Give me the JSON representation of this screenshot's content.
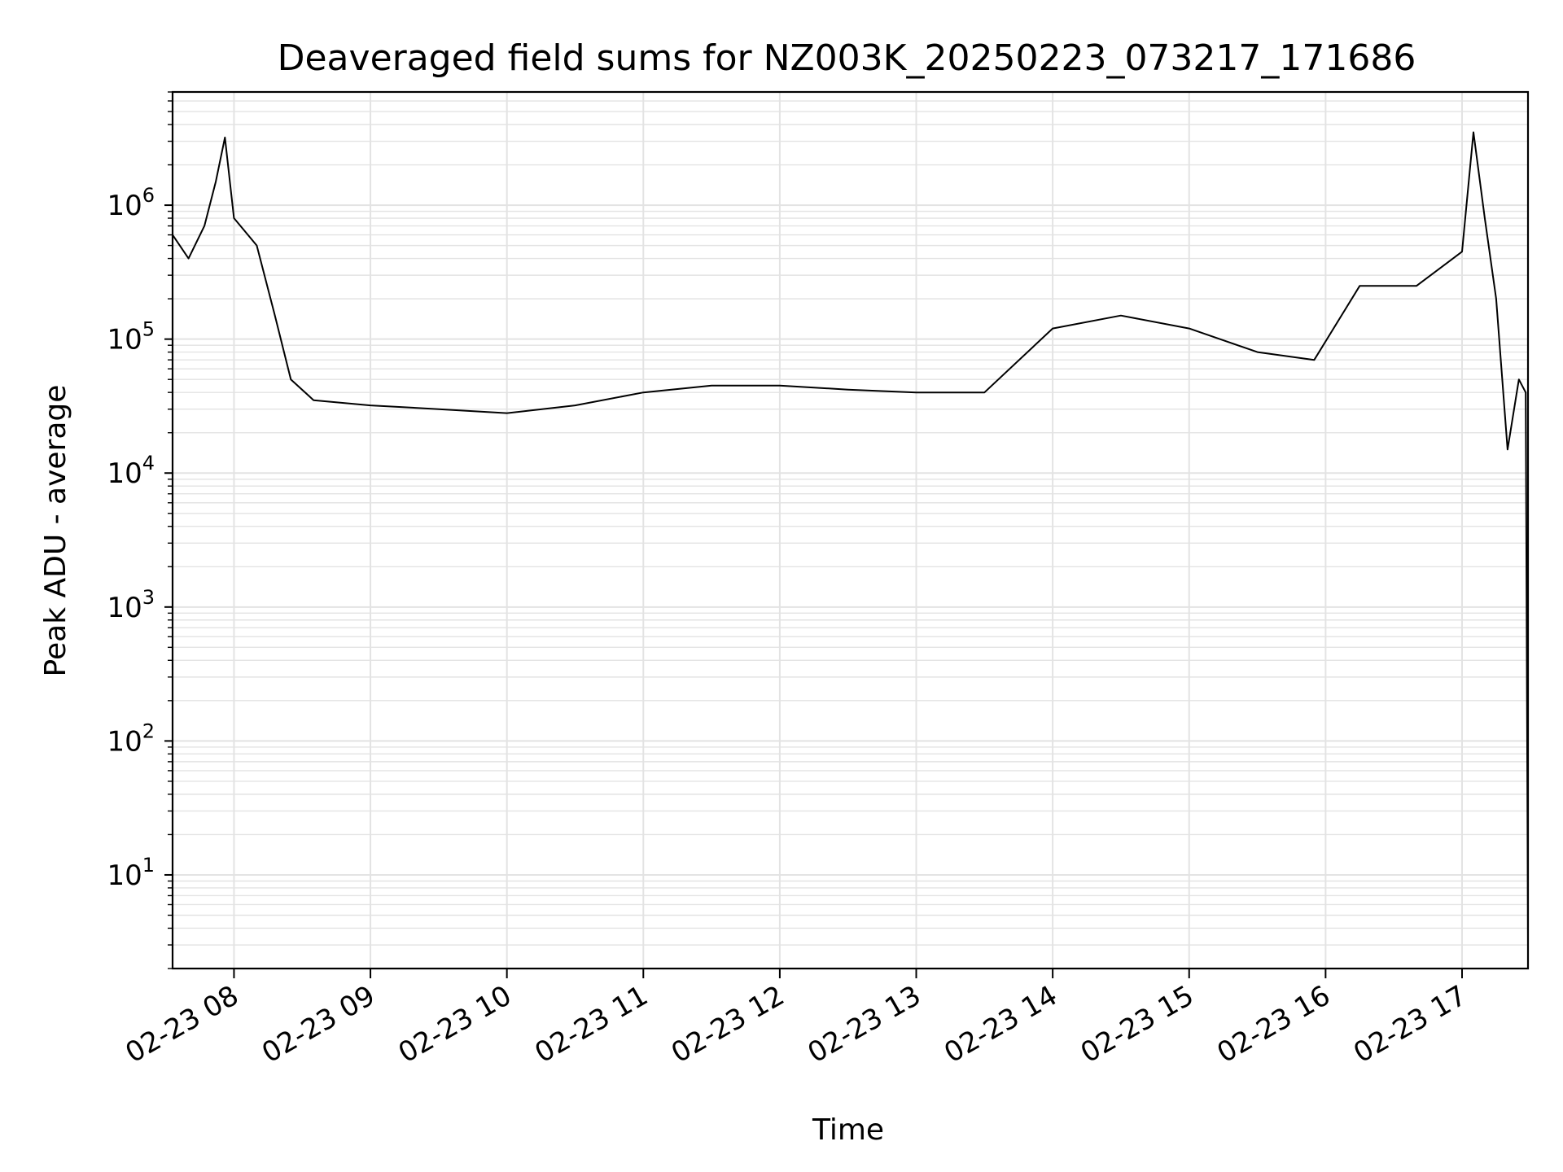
{
  "chart_data": {
    "type": "line",
    "title": "Deaveraged field sums for NZ003K_20250223_073217_171686",
    "xlabel": "Time",
    "ylabel": "Peak ADU - average",
    "yscale": "log",
    "ylim": [
      2,
      7000000
    ],
    "xlim": [
      "2025-02-23 07:33",
      "2025-02-23 17:29"
    ],
    "grid": true,
    "x_ticks": [
      "02-23 08",
      "02-23 09",
      "02-23 10",
      "02-23 11",
      "02-23 12",
      "02-23 13",
      "02-23 14",
      "02-23 15",
      "02-23 16",
      "02-23 17"
    ],
    "y_ticks": [
      {
        "base": "10",
        "exp": "1"
      },
      {
        "base": "10",
        "exp": "2"
      },
      {
        "base": "10",
        "exp": "3"
      },
      {
        "base": "10",
        "exp": "4"
      },
      {
        "base": "10",
        "exp": "5"
      },
      {
        "base": "10",
        "exp": "6"
      }
    ],
    "line_color": "#000000",
    "grid_color": "#e3e3e3",
    "series": [
      {
        "x": [
          "2025-02-23 07:33",
          "2025-02-23 07:40",
          "2025-02-23 07:47",
          "2025-02-23 07:52",
          "2025-02-23 07:56",
          "2025-02-23 08:00",
          "2025-02-23 08:10",
          "2025-02-23 08:18",
          "2025-02-23 08:25",
          "2025-02-23 08:35",
          "2025-02-23 09:00",
          "2025-02-23 09:30",
          "2025-02-23 10:00",
          "2025-02-23 10:30",
          "2025-02-23 11:00",
          "2025-02-23 11:30",
          "2025-02-23 12:00",
          "2025-02-23 12:30",
          "2025-02-23 13:00",
          "2025-02-23 13:30",
          "2025-02-23 14:00",
          "2025-02-23 14:30",
          "2025-02-23 15:00",
          "2025-02-23 15:30",
          "2025-02-23 15:55",
          "2025-02-23 16:15",
          "2025-02-23 16:40",
          "2025-02-23 17:00",
          "2025-02-23 17:05",
          "2025-02-23 17:10",
          "2025-02-23 17:15",
          "2025-02-23 17:20",
          "2025-02-23 17:25",
          "2025-02-23 17:28",
          "2025-02-23 17:29"
        ],
        "y": [
          600000,
          400000,
          700000,
          1500000,
          3200000,
          800000,
          500000,
          150000,
          50000,
          35000,
          32000,
          30000,
          28000,
          32000,
          40000,
          45000,
          45000,
          42000,
          40000,
          40000,
          120000,
          150000,
          120000,
          80000,
          70000,
          250000,
          250000,
          450000,
          3500000,
          800000,
          200000,
          15000,
          50000,
          40000,
          3
        ]
      }
    ]
  }
}
